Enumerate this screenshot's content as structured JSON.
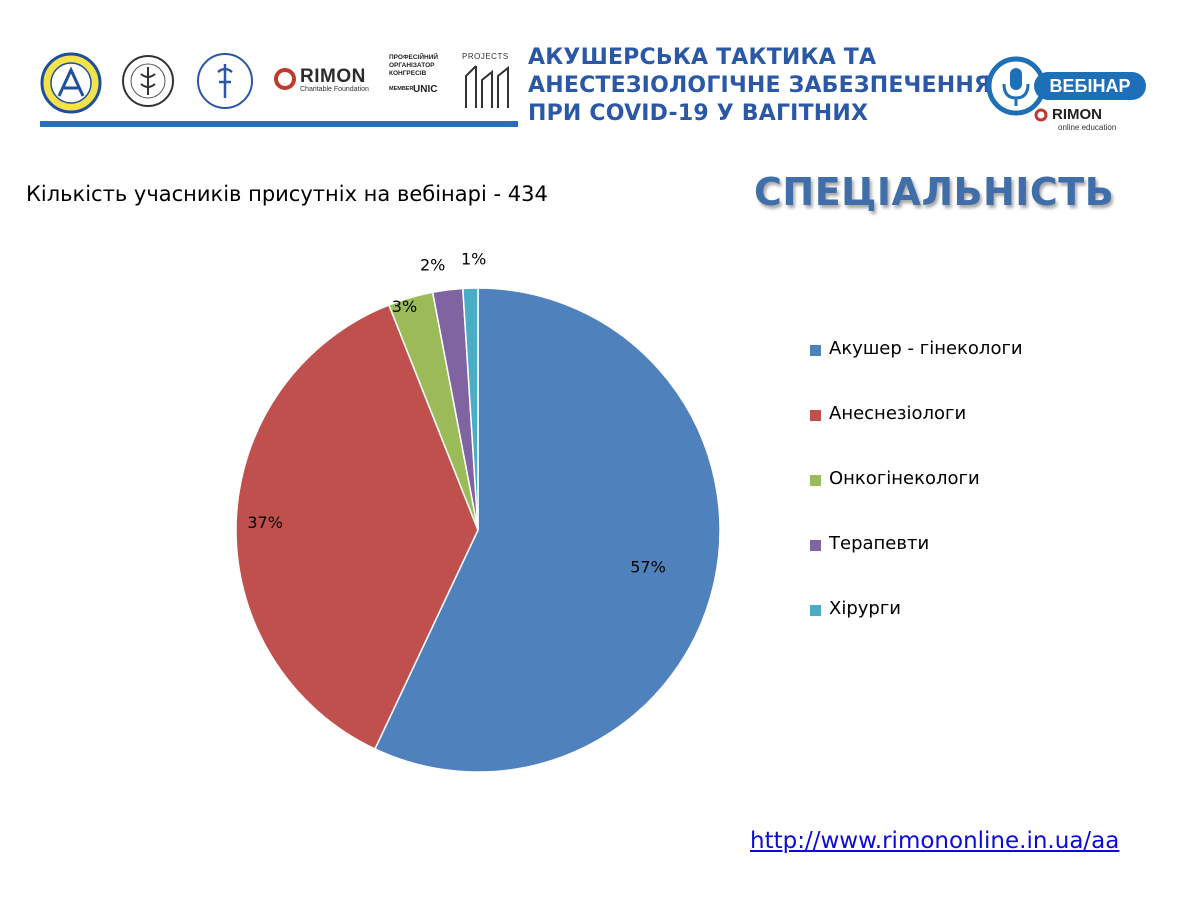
{
  "header": {
    "title_lines": [
      "АКУШЕРСЬКА ТАКТИКА ТА",
      "АНЕСТЕЗІОЛОГІЧНЕ ЗАБЕЗПЕЧЕННЯ",
      "ПРИ COVID-19 У ВАГІТНИХ"
    ],
    "rimon_logo": {
      "word": "RIMON",
      "sub": "Charitable Foundation"
    },
    "organizer_logo": {
      "lines": [
        "ПРОФЕСІЙНИЙ",
        "ОРГАНІЗАТОР",
        "КОНГРЕСІВ"
      ],
      "member": "MEMBER",
      "unic": "UNIC"
    },
    "projects_logo": {
      "text": "PROJECTS"
    },
    "webinar_logo": {
      "badge": "ВЕБІНАР",
      "brand": "RIMON",
      "sub": "online education"
    },
    "colors": {
      "title": "#2a57a6",
      "rule": "#2a6fb5",
      "webinar": "#1d6fb8"
    }
  },
  "participants_text": "Кількість учасників присутніх на вебінарі - 434",
  "section_title": "СПЕЦІАЛЬНІСТЬ",
  "footer_link": "http://www.rimononline.in.ua/aa",
  "chart_data": {
    "type": "pie",
    "start_angle_deg": 0,
    "direction": "clockwise",
    "slices": [
      {
        "name": "Акушер - гінекологи",
        "value": 57,
        "label": "57%",
        "color": "#4f81bd"
      },
      {
        "name": "Анеснезіологи",
        "value": 37,
        "label": "37%",
        "color": "#c0504d"
      },
      {
        "name": "Онкогінекологи",
        "value": 3,
        "label": "3%",
        "color": "#9bbb59"
      },
      {
        "name": "Терапевти",
        "value": 2,
        "label": "2%",
        "color": "#8064a2"
      },
      {
        "name": "Хірурги",
        "value": 1,
        "label": "1%",
        "color": "#4bacc6"
      }
    ],
    "legend_position": "right"
  }
}
